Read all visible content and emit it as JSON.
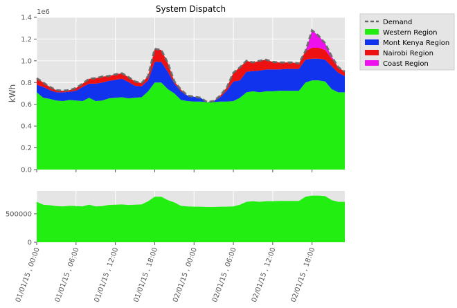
{
  "chart_data": [
    {
      "type": "area",
      "title": "System Dispatch",
      "ylabel": "kWh",
      "y_offset_label": "1e6",
      "stacked": true,
      "ylim": [
        0,
        1400000
      ],
      "yticks": [
        0,
        200000,
        400000,
        600000,
        800000,
        1000000,
        1200000,
        1400000
      ],
      "ytick_labels": [
        "0.0",
        "0.2",
        "0.4",
        "0.6",
        "0.8",
        "1.0",
        "1.2",
        "1.4"
      ],
      "grid": true,
      "legend_placement": "outside-top-right",
      "x_hours": [
        0,
        1,
        2,
        3,
        4,
        5,
        6,
        7,
        8,
        9,
        10,
        11,
        12,
        13,
        14,
        15,
        16,
        17,
        18,
        19,
        20,
        21,
        22,
        23,
        24,
        25,
        26,
        27,
        28,
        29,
        30,
        31,
        32,
        33,
        34,
        35,
        36,
        37,
        38,
        39,
        40,
        41,
        42,
        43,
        44,
        45,
        46,
        47
      ],
      "xtick_labels": [
        "01/01/15 , 00:00",
        "01/01/15 , 06:00",
        "01/01/15 , 12:00",
        "01/01/15 , 18:00",
        "02/01/15 , 00:00",
        "02/01/15 , 06:00",
        "02/01/15 , 12:00",
        "02/01/15 , 18:00"
      ],
      "xtick_hours": [
        0,
        6,
        12,
        18,
        24,
        30,
        36,
        42
      ],
      "series": [
        {
          "name": "Western Region",
          "color": "#22ee11",
          "values": [
            710000,
            660000,
            650000,
            635000,
            630000,
            640000,
            635000,
            630000,
            660000,
            630000,
            635000,
            655000,
            660000,
            665000,
            655000,
            660000,
            665000,
            720000,
            800000,
            800000,
            740000,
            700000,
            640000,
            630000,
            625000,
            625000,
            620000,
            620000,
            625000,
            625000,
            630000,
            660000,
            710000,
            720000,
            710000,
            720000,
            720000,
            725000,
            725000,
            725000,
            725000,
            800000,
            820000,
            820000,
            810000,
            740000,
            710000,
            710000
          ]
        },
        {
          "name": "Mont Kenya Region",
          "color": "#1133ee",
          "values": [
            70000,
            100000,
            80000,
            75000,
            80000,
            75000,
            90000,
            130000,
            130000,
            160000,
            165000,
            160000,
            165000,
            170000,
            150000,
            110000,
            100000,
            100000,
            190000,
            190000,
            160000,
            90000,
            80000,
            50000,
            45000,
            35000,
            0,
            10000,
            40000,
            100000,
            180000,
            160000,
            190000,
            185000,
            200000,
            200000,
            200000,
            195000,
            200000,
            200000,
            200000,
            210000,
            200000,
            200000,
            200000,
            210000,
            180000,
            150000
          ]
        },
        {
          "name": "Nairobi Region",
          "color": "#ee1111",
          "values": [
            60000,
            40000,
            30000,
            20000,
            15000,
            15000,
            25000,
            30000,
            45000,
            50000,
            55000,
            45000,
            50000,
            50000,
            45000,
            40000,
            30000,
            40000,
            120000,
            110000,
            80000,
            20000,
            15000,
            0,
            0,
            0,
            0,
            0,
            15000,
            30000,
            80000,
            120000,
            100000,
            80000,
            90000,
            90000,
            70000,
            65000,
            60000,
            60000,
            50000,
            80000,
            100000,
            100000,
            90000,
            70000,
            50000,
            40000
          ]
        },
        {
          "name": "Coast Region",
          "color": "#ee11ee",
          "values": [
            0,
            0,
            0,
            0,
            0,
            0,
            0,
            0,
            0,
            0,
            0,
            0,
            0,
            0,
            0,
            0,
            0,
            0,
            0,
            0,
            0,
            0,
            0,
            0,
            0,
            0,
            0,
            0,
            0,
            0,
            0,
            0,
            0,
            0,
            0,
            0,
            0,
            0,
            0,
            0,
            0,
            0,
            160000,
            110000,
            60000,
            20000,
            0,
            0
          ]
        }
      ],
      "demand": {
        "name": "Demand",
        "color": "#666666",
        "style": "dashed"
      }
    },
    {
      "type": "area",
      "ylim": [
        0,
        900000
      ],
      "yticks": [
        0,
        500000
      ],
      "ytick_labels": [
        "0",
        "500000"
      ],
      "grid": true,
      "series_ref": "Western Region"
    }
  ]
}
